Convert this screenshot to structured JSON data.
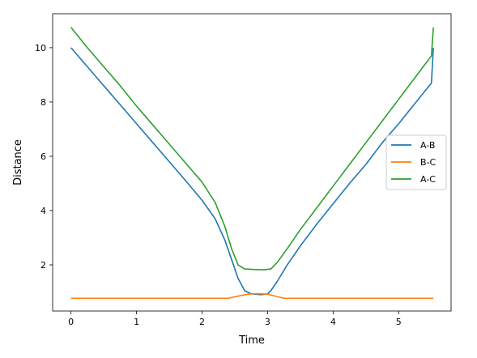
{
  "chart_data": {
    "type": "line",
    "title": "",
    "xlabel": "Time",
    "ylabel": "Distance",
    "xlim": [
      -0.28,
      5.8
    ],
    "ylim": [
      0.3,
      11.25
    ],
    "xticks": [
      0,
      1,
      2,
      3,
      4,
      5
    ],
    "yticks": [
      2,
      4,
      6,
      8,
      10
    ],
    "grid": false,
    "legend_position": "center-right",
    "series": [
      {
        "name": "A-B",
        "color": "#1f77b4",
        "points": [
          [
            0,
            10.0
          ],
          [
            0.25,
            9.3
          ],
          [
            0.5,
            8.6
          ],
          [
            0.75,
            7.9
          ],
          [
            1.0,
            7.2
          ],
          [
            1.25,
            6.5
          ],
          [
            1.5,
            5.8
          ],
          [
            1.75,
            5.1
          ],
          [
            2.0,
            4.38
          ],
          [
            2.2,
            3.7
          ],
          [
            2.35,
            2.9
          ],
          [
            2.45,
            2.2
          ],
          [
            2.55,
            1.5
          ],
          [
            2.65,
            1.05
          ],
          [
            2.75,
            0.93
          ],
          [
            2.9,
            0.9
          ],
          [
            3.0,
            0.93
          ],
          [
            3.05,
            1.05
          ],
          [
            3.15,
            1.4
          ],
          [
            3.3,
            2.0
          ],
          [
            3.5,
            2.7
          ],
          [
            3.75,
            3.5
          ],
          [
            4.0,
            4.25
          ],
          [
            4.25,
            5.0
          ],
          [
            4.5,
            5.7
          ],
          [
            4.75,
            6.5
          ],
          [
            5.0,
            7.2
          ],
          [
            5.25,
            7.95
          ],
          [
            5.5,
            8.7
          ],
          [
            5.53,
            10.0
          ]
        ]
      },
      {
        "name": "B-C",
        "color": "#ff7f0e",
        "points": [
          [
            0,
            0.77
          ],
          [
            2.4,
            0.77
          ],
          [
            2.55,
            0.85
          ],
          [
            2.7,
            0.92
          ],
          [
            2.85,
            0.94
          ],
          [
            3.0,
            0.92
          ],
          [
            3.15,
            0.83
          ],
          [
            3.25,
            0.77
          ],
          [
            5.53,
            0.77
          ]
        ]
      },
      {
        "name": "A-C",
        "color": "#2ca02c",
        "points": [
          [
            0,
            10.75
          ],
          [
            0.25,
            10.0
          ],
          [
            0.5,
            9.3
          ],
          [
            0.75,
            8.6
          ],
          [
            1.0,
            7.85
          ],
          [
            1.25,
            7.15
          ],
          [
            1.5,
            6.45
          ],
          [
            1.75,
            5.75
          ],
          [
            2.0,
            5.05
          ],
          [
            2.2,
            4.3
          ],
          [
            2.35,
            3.4
          ],
          [
            2.45,
            2.6
          ],
          [
            2.55,
            2.0
          ],
          [
            2.65,
            1.85
          ],
          [
            2.8,
            1.83
          ],
          [
            2.95,
            1.82
          ],
          [
            3.05,
            1.85
          ],
          [
            3.15,
            2.1
          ],
          [
            3.3,
            2.6
          ],
          [
            3.5,
            3.3
          ],
          [
            3.75,
            4.1
          ],
          [
            4.0,
            4.9
          ],
          [
            4.25,
            5.7
          ],
          [
            4.5,
            6.5
          ],
          [
            4.75,
            7.3
          ],
          [
            5.0,
            8.1
          ],
          [
            5.25,
            8.9
          ],
          [
            5.5,
            9.7
          ],
          [
            5.53,
            10.75
          ]
        ]
      }
    ]
  }
}
